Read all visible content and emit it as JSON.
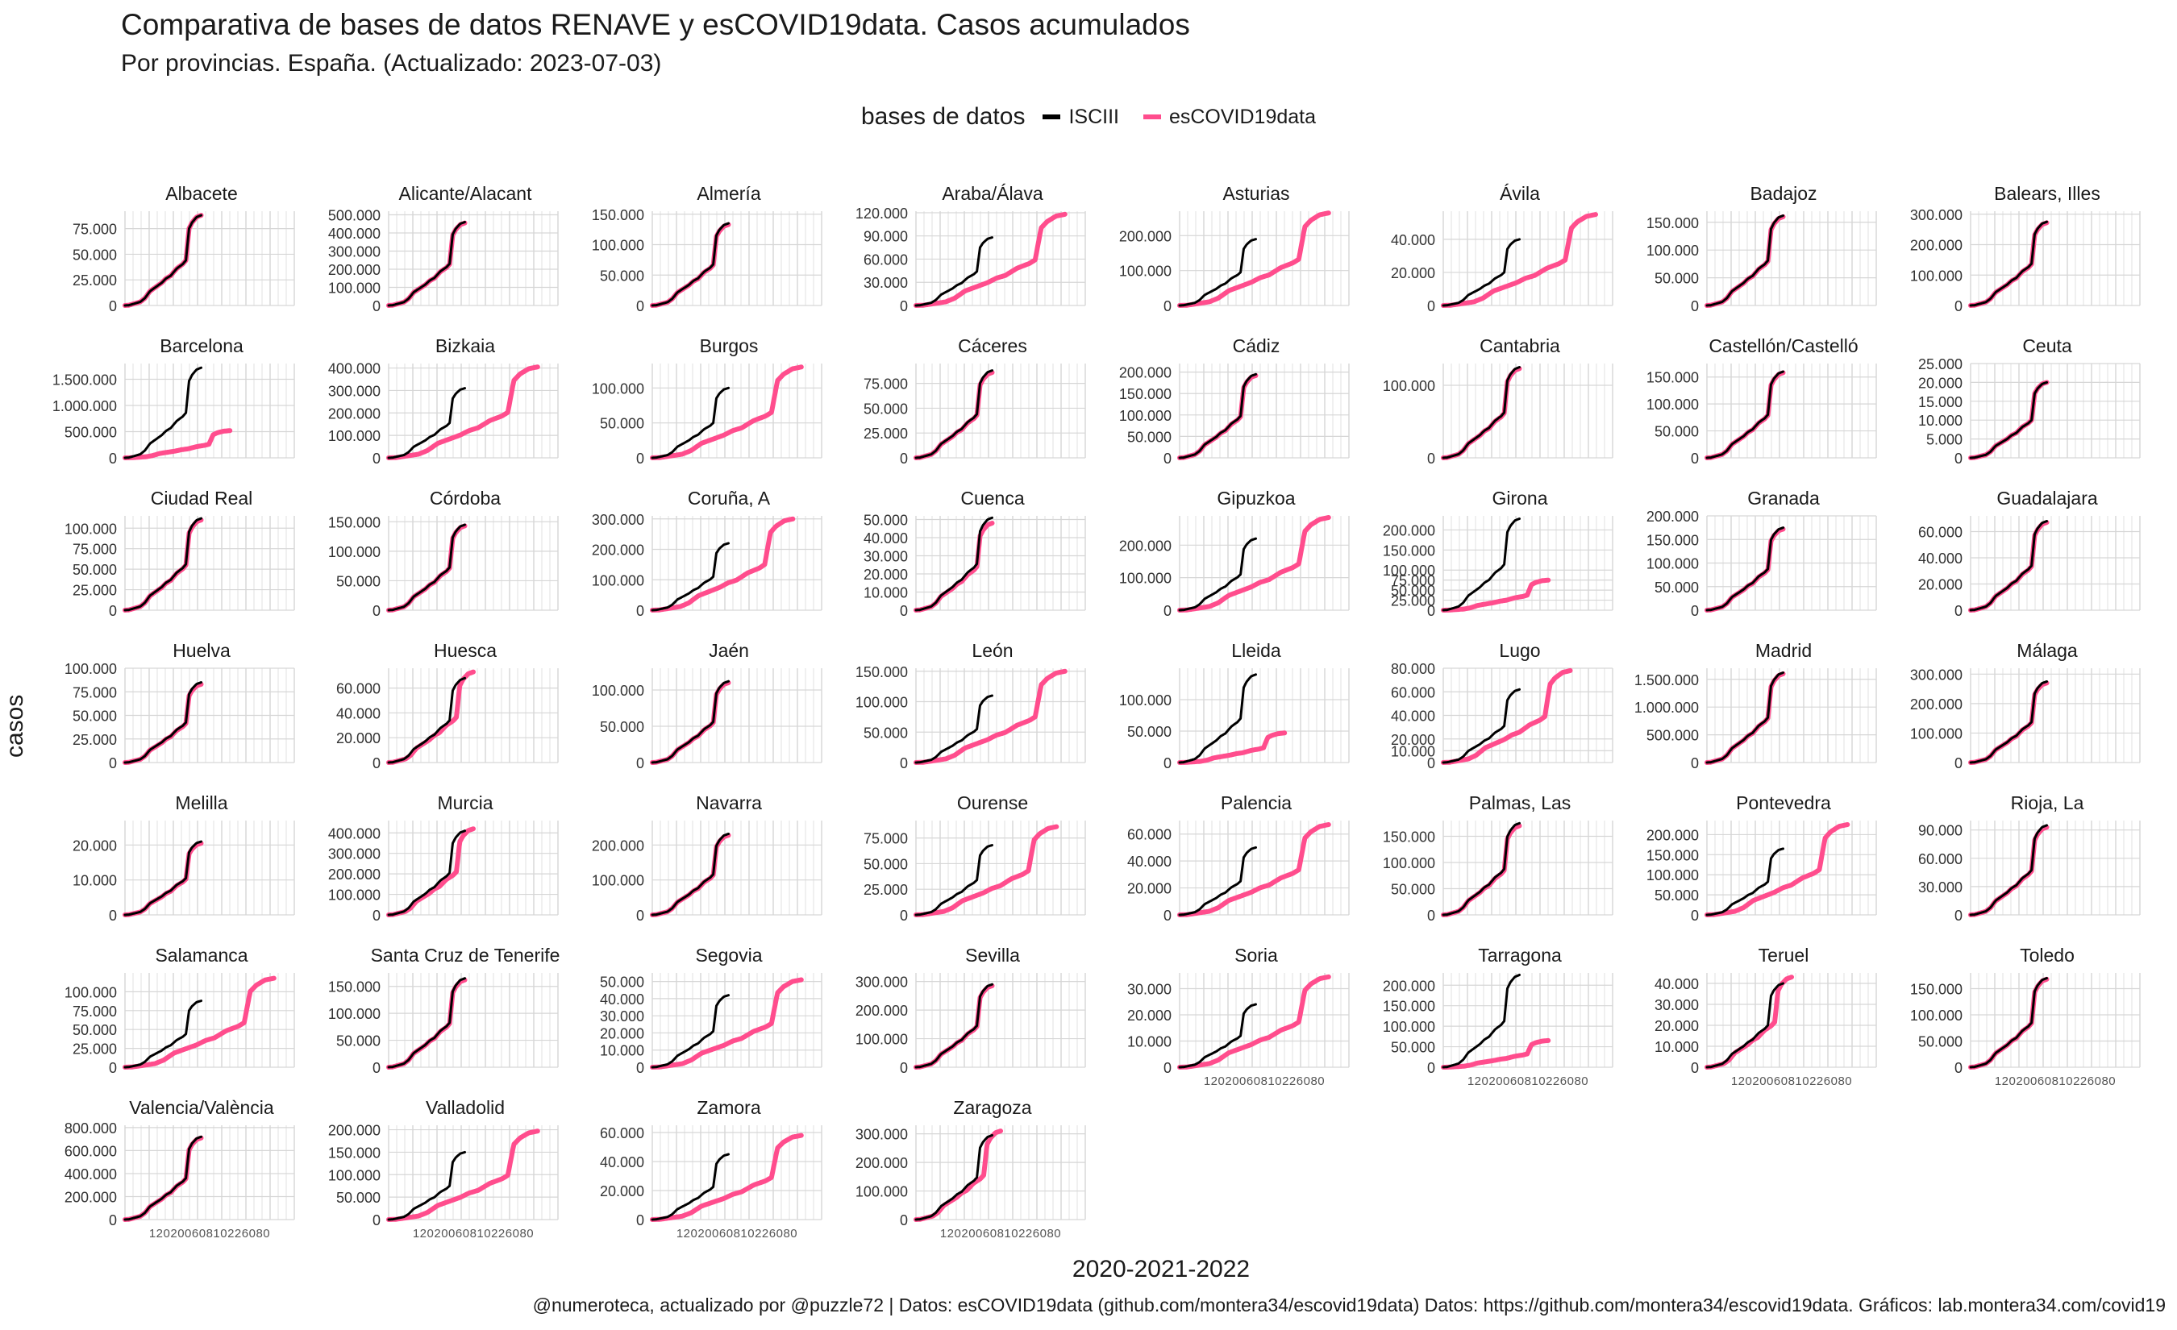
{
  "title": "Comparativa de bases de datos RENAVE y esCOVID19data. Casos acumulados",
  "subtitle": "Por provincias. España. (Actualizado: 2023-07-03)",
  "legend": {
    "title": "bases de datos",
    "items": [
      {
        "name": "ISCIII",
        "color": "#000000"
      },
      {
        "name": "esCOVID19data",
        "color": "#ff4d8d"
      }
    ]
  },
  "ylabel": "casos",
  "xlabel": "2020-2021-2022",
  "caption": "@numeroteca, actualizado por @puzzle72 | Datos: esCOVID19data (github.com/montera34/escovid19data) Datos: https://github.com/montera34/escovid19data. Gráficos: lab.montera34.com/covid19",
  "x_tick_text": "12020060810226080",
  "chart_data": {
    "type": "line",
    "series_names": [
      "ISCIII",
      "esCOVID19data"
    ],
    "panels": [
      {
        "name": "Albacete",
        "ticks": [
          "0",
          "25.000",
          "50.000",
          "75.000"
        ],
        "ymax": 92000,
        "renave": 88000,
        "escovid": 88000,
        "escovid_end": 0.45
      },
      {
        "name": "Alicante/Alacant",
        "ticks": [
          "0",
          "100.000",
          "200.000",
          "300.000",
          "400.000",
          "500.000"
        ],
        "ymax": 520000,
        "renave": 460000,
        "escovid": 455000,
        "escovid_end": 0.45
      },
      {
        "name": "Almería",
        "ticks": [
          "0",
          "50.000",
          "100.000",
          "150.000"
        ],
        "ymax": 155000,
        "renave": 135000,
        "escovid": 133000,
        "escovid_end": 0.45
      },
      {
        "name": "Araba/Álava",
        "ticks": [
          "0",
          "30.000",
          "60.000",
          "90.000",
          "120.000"
        ],
        "ymax": 122000,
        "renave": 88000,
        "escovid": 118000,
        "escovid_end": 0.88
      },
      {
        "name": "Asturias",
        "ticks": [
          "0",
          "100.000",
          "200.000"
        ],
        "ymax": 270000,
        "renave": 190000,
        "escovid": 265000,
        "escovid_end": 0.88
      },
      {
        "name": "Ávila",
        "ticks": [
          "0",
          "20.000",
          "40.000"
        ],
        "ymax": 57000,
        "renave": 40000,
        "escovid": 55000,
        "escovid_end": 0.9
      },
      {
        "name": "Badajoz",
        "ticks": [
          "0",
          "50.000",
          "100.000",
          "150.000"
        ],
        "ymax": 170000,
        "renave": 162000,
        "escovid": 160000,
        "escovid_end": 0.45
      },
      {
        "name": "Balears, Illes",
        "ticks": [
          "0",
          "100.000",
          "200.000",
          "300.000"
        ],
        "ymax": 310000,
        "renave": 275000,
        "escovid": 272000,
        "escovid_end": 0.45
      },
      {
        "name": "Barcelona",
        "ticks": [
          "0",
          "500.000",
          "1.000.000",
          "1.500.000"
        ],
        "ymax": 1800000,
        "renave": 1720000,
        "escovid": 520000,
        "escovid_end": 0.62,
        "ratio": 0.3
      },
      {
        "name": "Bizkaia",
        "ticks": [
          "0",
          "100.000",
          "200.000",
          "300.000",
          "400.000"
        ],
        "ymax": 420000,
        "renave": 310000,
        "escovid": 405000,
        "escovid_end": 0.88
      },
      {
        "name": "Burgos",
        "ticks": [
          "0",
          "50.000",
          "100.000"
        ],
        "ymax": 135000,
        "renave": 100000,
        "escovid": 130000,
        "escovid_end": 0.88
      },
      {
        "name": "Cáceres",
        "ticks": [
          "0",
          "25.000",
          "50.000",
          "75.000"
        ],
        "ymax": 95000,
        "renave": 88000,
        "escovid": 86000,
        "escovid_end": 0.45
      },
      {
        "name": "Cádiz",
        "ticks": [
          "0",
          "50.000",
          "100.000",
          "150.000",
          "200.000"
        ],
        "ymax": 220000,
        "renave": 195000,
        "escovid": 192000,
        "escovid_end": 0.45
      },
      {
        "name": "Cantabria",
        "ticks": [
          "0",
          "100.000"
        ],
        "ymax": 130000,
        "renave": 125000,
        "escovid": 123000,
        "escovid_end": 0.45
      },
      {
        "name": "Castellón/Castelló",
        "ticks": [
          "0",
          "50.000",
          "100.000",
          "150.000"
        ],
        "ymax": 175000,
        "renave": 160000,
        "escovid": 158000,
        "escovid_end": 0.45
      },
      {
        "name": "Ceuta",
        "ticks": [
          "0",
          "5.000",
          "10.000",
          "15.000",
          "20.000",
          "25.000"
        ],
        "ymax": 25000,
        "renave": 20000,
        "escovid": 20000,
        "escovid_end": 0.45
      },
      {
        "name": "Ciudad Real",
        "ticks": [
          "0",
          "25.000",
          "50.000",
          "75.000",
          "100.000"
        ],
        "ymax": 115000,
        "renave": 112000,
        "escovid": 110000,
        "escovid_end": 0.45
      },
      {
        "name": "Córdoba",
        "ticks": [
          "0",
          "50.000",
          "100.000",
          "150.000"
        ],
        "ymax": 160000,
        "renave": 145000,
        "escovid": 143000,
        "escovid_end": 0.45
      },
      {
        "name": "Coruña, A",
        "ticks": [
          "0",
          "100.000",
          "200.000",
          "300.000"
        ],
        "ymax": 310000,
        "renave": 220000,
        "escovid": 300000,
        "escovid_end": 0.83
      },
      {
        "name": "Cuenca",
        "ticks": [
          "0",
          "10.000",
          "20.000",
          "30.000",
          "40.000",
          "50.000"
        ],
        "ymax": 52000,
        "renave": 51000,
        "escovid": 48000,
        "escovid_end": 0.45
      },
      {
        "name": "Gipuzkoa",
        "ticks": [
          "0",
          "100.000",
          "200.000"
        ],
        "ymax": 290000,
        "renave": 220000,
        "escovid": 285000,
        "escovid_end": 0.88
      },
      {
        "name": "Girona",
        "ticks": [
          "0",
          "25.000",
          "50.000",
          "75.000",
          "100.000",
          "150.000",
          "200.000"
        ],
        "tickvals": [
          0,
          25000,
          50000,
          75000,
          100000,
          150000,
          200000
        ],
        "ymax": 235000,
        "renave": 228000,
        "escovid": 75000,
        "escovid_end": 0.62,
        "ratio": 0.33
      },
      {
        "name": "Granada",
        "ticks": [
          "0",
          "50.000",
          "100.000",
          "150.000",
          "200.000"
        ],
        "ymax": 200000,
        "renave": 175000,
        "escovid": 172000,
        "escovid_end": 0.45
      },
      {
        "name": "Guadalajara",
        "ticks": [
          "0",
          "20.000",
          "40.000",
          "60.000"
        ],
        "ymax": 72000,
        "renave": 68000,
        "escovid": 67000,
        "escovid_end": 0.45
      },
      {
        "name": "Huelva",
        "ticks": [
          "0",
          "25.000",
          "50.000",
          "75.000",
          "100.000"
        ],
        "ymax": 100000,
        "renave": 85000,
        "escovid": 83000,
        "escovid_end": 0.45
      },
      {
        "name": "Huesca",
        "ticks": [
          "0",
          "20.000",
          "40.000",
          "60.000"
        ],
        "ymax": 76000,
        "renave": 68000,
        "escovid": 73000,
        "escovid_end": 0.5
      },
      {
        "name": "Jaén",
        "ticks": [
          "0",
          "50.000",
          "100.000"
        ],
        "ymax": 130000,
        "renave": 112000,
        "escovid": 110000,
        "escovid_end": 0.45
      },
      {
        "name": "León",
        "ticks": [
          "0",
          "50.000",
          "100.000",
          "150.000"
        ],
        "ymax": 155000,
        "renave": 110000,
        "escovid": 150000,
        "escovid_end": 0.88
      },
      {
        "name": "Lleida",
        "ticks": [
          "0",
          "50.000",
          "100.000"
        ],
        "ymax": 150000,
        "renave": 140000,
        "escovid": 47000,
        "escovid_end": 0.62,
        "ratio": 0.33
      },
      {
        "name": "Lugo",
        "ticks": [
          "0",
          "10.000",
          "20.000",
          "40.000",
          "60.000",
          "80.000"
        ],
        "tickvals": [
          0,
          10000,
          20000,
          40000,
          60000,
          80000
        ],
        "ymax": 80000,
        "renave": 62000,
        "escovid": 78000,
        "escovid_end": 0.75
      },
      {
        "name": "Madrid",
        "ticks": [
          "0",
          "500.000",
          "1.000.000",
          "1.500.000"
        ],
        "ymax": 1700000,
        "renave": 1620000,
        "escovid": 1600000,
        "escovid_end": 0.45
      },
      {
        "name": "Málaga",
        "ticks": [
          "0",
          "100.000",
          "200.000",
          "300.000"
        ],
        "ymax": 320000,
        "renave": 275000,
        "escovid": 270000,
        "escovid_end": 0.45
      },
      {
        "name": "Melilla",
        "ticks": [
          "0",
          "10.000",
          "20.000"
        ],
        "ymax": 27000,
        "renave": 21000,
        "escovid": 20500,
        "escovid_end": 0.45
      },
      {
        "name": "Murcia",
        "ticks": [
          "0",
          "100.000",
          "200.000",
          "300.000",
          "400.000"
        ],
        "ymax": 460000,
        "renave": 410000,
        "escovid": 420000,
        "escovid_end": 0.5
      },
      {
        "name": "Navarra",
        "ticks": [
          "0",
          "100.000",
          "200.000"
        ],
        "ymax": 270000,
        "renave": 232000,
        "escovid": 228000,
        "escovid_end": 0.45
      },
      {
        "name": "Ourense",
        "ticks": [
          "0",
          "25.000",
          "50.000",
          "75.000"
        ],
        "ymax": 92000,
        "renave": 68000,
        "escovid": 86000,
        "escovid_end": 0.83
      },
      {
        "name": "Palencia",
        "ticks": [
          "0",
          "20.000",
          "40.000",
          "60.000"
        ],
        "ymax": 70000,
        "renave": 50000,
        "escovid": 67000,
        "escovid_end": 0.88
      },
      {
        "name": "Palmas, Las",
        "ticks": [
          "0",
          "50.000",
          "100.000",
          "150.000"
        ],
        "ymax": 180000,
        "renave": 175000,
        "escovid": 170000,
        "escovid_end": 0.45
      },
      {
        "name": "Pontevedra",
        "ticks": [
          "0",
          "50.000",
          "100.000",
          "150.000",
          "200.000"
        ],
        "ymax": 235000,
        "renave": 165000,
        "escovid": 225000,
        "escovid_end": 0.83
      },
      {
        "name": "Rioja, La",
        "ticks": [
          "0",
          "30.000",
          "60.000",
          "90.000"
        ],
        "ymax": 100000,
        "renave": 95000,
        "escovid": 93000,
        "escovid_end": 0.45
      },
      {
        "name": "Salamanca",
        "ticks": [
          "0",
          "25.000",
          "50.000",
          "75.000",
          "100.000"
        ],
        "ymax": 125000,
        "renave": 88000,
        "escovid": 118000,
        "escovid_end": 0.88
      },
      {
        "name": "Santa Cruz de Tenerife",
        "ticks": [
          "0",
          "50.000",
          "100.000",
          "150.000"
        ],
        "ymax": 175000,
        "renave": 165000,
        "escovid": 162000,
        "escovid_end": 0.45
      },
      {
        "name": "Segovia",
        "ticks": [
          "0",
          "10.000",
          "20.000",
          "30.000",
          "40.000",
          "50.000"
        ],
        "ymax": 55000,
        "renave": 42000,
        "escovid": 51000,
        "escovid_end": 0.88
      },
      {
        "name": "Sevilla",
        "ticks": [
          "0",
          "100.000",
          "200.000",
          "300.000"
        ],
        "ymax": 330000,
        "renave": 290000,
        "escovid": 285000,
        "escovid_end": 0.45
      },
      {
        "name": "Soria",
        "ticks": [
          "0",
          "10.000",
          "20.000",
          "30.000"
        ],
        "ymax": 36000,
        "renave": 24000,
        "escovid": 34500,
        "escovid_end": 0.88
      },
      {
        "name": "Tarragona",
        "ticks": [
          "0",
          "50.000",
          "100.000",
          "150.000",
          "200.000"
        ],
        "ymax": 230000,
        "renave": 225000,
        "escovid": 65000,
        "escovid_end": 0.62,
        "ratio": 0.3
      },
      {
        "name": "Teruel",
        "ticks": [
          "0",
          "10.000",
          "20.000",
          "30.000",
          "40.000"
        ],
        "ymax": 45000,
        "renave": 40000,
        "escovid": 43000,
        "escovid_end": 0.5
      },
      {
        "name": "Toledo",
        "ticks": [
          "0",
          "50.000",
          "100.000",
          "150.000"
        ],
        "ymax": 180000,
        "renave": 170000,
        "escovid": 168000,
        "escovid_end": 0.45
      },
      {
        "name": "Valencia/València",
        "ticks": [
          "0",
          "200.000",
          "400.000",
          "600.000",
          "800.000"
        ],
        "ymax": 820000,
        "renave": 720000,
        "escovid": 710000,
        "escovid_end": 0.45
      },
      {
        "name": "Valladolid",
        "ticks": [
          "0",
          "50.000",
          "100.000",
          "150.000",
          "200.000"
        ],
        "ymax": 210000,
        "renave": 150000,
        "escovid": 197000,
        "escovid_end": 0.88
      },
      {
        "name": "Zamora",
        "ticks": [
          "0",
          "20.000",
          "40.000",
          "60.000"
        ],
        "ymax": 65000,
        "renave": 45000,
        "escovid": 58000,
        "escovid_end": 0.88
      },
      {
        "name": "Zaragoza",
        "ticks": [
          "0",
          "100.000",
          "200.000",
          "300.000"
        ],
        "ymax": 330000,
        "renave": 295000,
        "escovid": 310000,
        "escovid_end": 0.5
      }
    ]
  }
}
